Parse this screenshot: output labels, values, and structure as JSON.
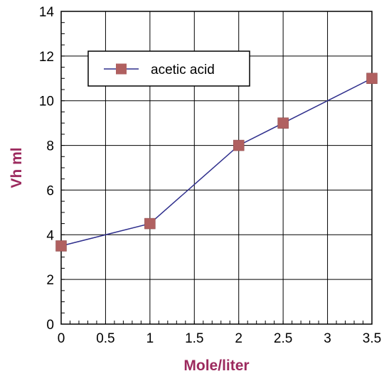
{
  "chart_data": {
    "type": "line",
    "xlabel": "Mole/liter",
    "ylabel": "Vh ml",
    "xlim": [
      0,
      3.5
    ],
    "ylim": [
      0,
      14
    ],
    "x_ticks": [
      "0",
      "0.5",
      "1",
      "1.5",
      "2",
      "2.5",
      "3",
      "3.5"
    ],
    "y_ticks": [
      "0",
      "2",
      "4",
      "6",
      "8",
      "10",
      "12",
      "14"
    ],
    "grid": true,
    "legend_position": "top-left",
    "series": [
      {
        "name": "acetic acid",
        "line_color": "#2e2e8c",
        "marker_color": "#b06060",
        "marker": "square",
        "points": [
          {
            "x": 0,
            "y": 3.5
          },
          {
            "x": 1,
            "y": 4.5
          },
          {
            "x": 2,
            "y": 8
          },
          {
            "x": 2.5,
            "y": 9
          },
          {
            "x": 3.5,
            "y": 11
          }
        ]
      }
    ],
    "axis_title_color": "#9c2a5e"
  }
}
